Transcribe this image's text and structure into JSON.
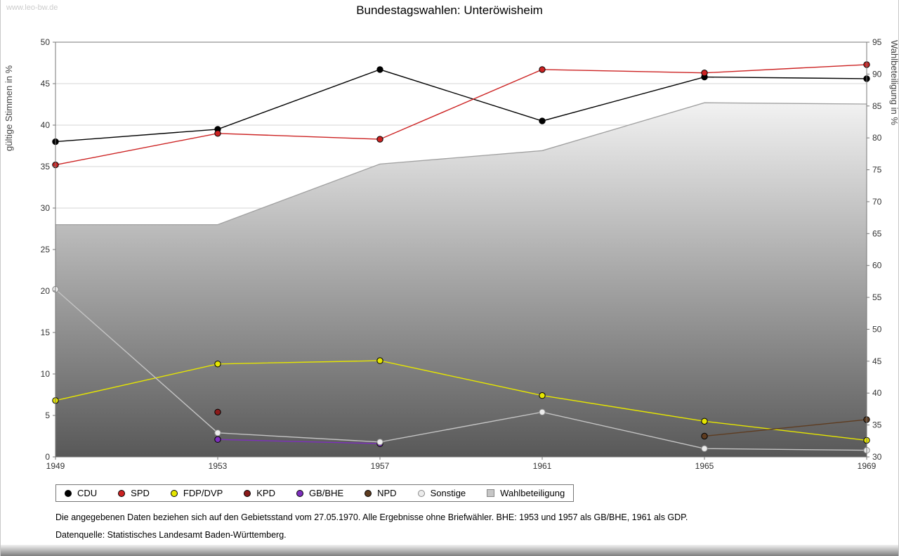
{
  "page": {
    "watermark": "www.leo-bw.de",
    "title": "Bundestagswahlen: Unteröwisheim",
    "footnote1": "Die angegebenen Daten beziehen sich auf den Gebietsstand vom 27.05.1970. Alle Ergebnisse ohne Briefwähler. BHE: 1953 und 1957 als GB/BHE, 1961 als GDP.",
    "footnote2": "Datenquelle: Statistisches Landesamt Baden-Württemberg."
  },
  "chart_data": {
    "type": "line",
    "title": "Bundestagswahlen: Unteröwisheim",
    "x": [
      1949,
      1953,
      1957,
      1961,
      1965,
      1969
    ],
    "left_axis": {
      "label": "gültige Stimmen in %",
      "min": 0,
      "max": 50,
      "tick_step": 5
    },
    "right_axis": {
      "label": "Wahlbeteiligung in %",
      "min": 30,
      "max": 95,
      "tick_step": 5
    },
    "grid": true,
    "legend_position": "bottom",
    "series": [
      {
        "name": "CDU",
        "color": "#000000",
        "axis": "left",
        "points": [
          [
            1949,
            38.0
          ],
          [
            1953,
            39.5
          ],
          [
            1957,
            46.7
          ],
          [
            1961,
            40.5
          ],
          [
            1965,
            45.8
          ],
          [
            1969,
            45.6
          ]
        ]
      },
      {
        "name": "SPD",
        "color": "#cc2222",
        "axis": "left",
        "points": [
          [
            1949,
            35.2
          ],
          [
            1953,
            39.0
          ],
          [
            1957,
            38.3
          ],
          [
            1961,
            46.7
          ],
          [
            1965,
            46.3
          ],
          [
            1969,
            47.3
          ]
        ]
      },
      {
        "name": "FDP/DVP",
        "color": "#e6e600",
        "axis": "left",
        "points": [
          [
            1949,
            6.8
          ],
          [
            1953,
            11.2
          ],
          [
            1957,
            11.6
          ],
          [
            1961,
            7.4
          ],
          [
            1965,
            4.3
          ],
          [
            1969,
            2.0
          ]
        ]
      },
      {
        "name": "KPD",
        "color": "#8b1a1a",
        "axis": "left",
        "points": [
          [
            1953,
            5.4
          ]
        ]
      },
      {
        "name": "GB/BHE",
        "color": "#7d2fbd",
        "axis": "left",
        "points": [
          [
            1953,
            2.1
          ],
          [
            1957,
            1.6
          ]
        ]
      },
      {
        "name": "NPD",
        "color": "#5e3c20",
        "axis": "left",
        "points": [
          [
            1965,
            2.5
          ],
          [
            1969,
            4.5
          ]
        ]
      },
      {
        "name": "Sonstige",
        "color": "#c4c4c4",
        "axis": "left",
        "marker_fill": "#ececec",
        "marker_stroke": "#8a8a8a",
        "points": [
          [
            1949,
            20.2
          ],
          [
            1953,
            2.9
          ],
          [
            1957,
            1.8
          ],
          [
            1961,
            5.4
          ],
          [
            1965,
            1.0
          ],
          [
            1969,
            0.8
          ]
        ]
      }
    ],
    "area_series": {
      "name": "Wahlbeteiligung",
      "axis": "right",
      "stroke": "#a0a0a0",
      "fill_top": "#f2f2f2",
      "fill_bottom": "#585858",
      "points": [
        [
          1949,
          66.4
        ],
        [
          1953,
          66.4
        ],
        [
          1957,
          75.9
        ],
        [
          1961,
          78.0
        ],
        [
          1965,
          85.5
        ],
        [
          1969,
          85.3
        ]
      ]
    },
    "legend": [
      "CDU",
      "SPD",
      "FDP/DVP",
      "KPD",
      "GB/BHE",
      "NPD",
      "Sonstige",
      "Wahlbeteiligung"
    ]
  }
}
